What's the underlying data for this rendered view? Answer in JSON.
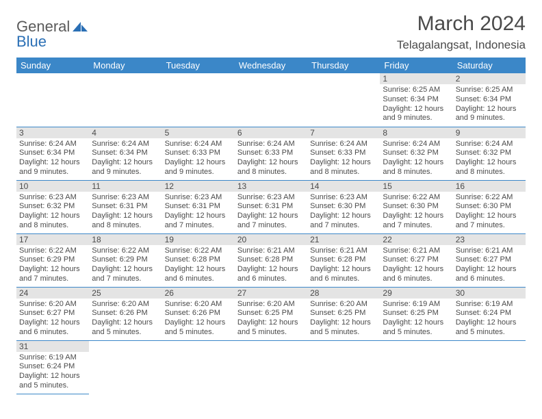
{
  "logo": {
    "part1": "General",
    "part2": "Blue"
  },
  "title": "March 2024",
  "location": "Telagalangsat, Indonesia",
  "colors": {
    "header_bg": "#3b87c8",
    "header_fg": "#ffffff",
    "daynum_bg": "#e4e4e4",
    "border": "#3b87c8",
    "text": "#4a4a4a",
    "logo_gray": "#5a5a5a",
    "logo_blue": "#2a6fb5"
  },
  "weekdays": [
    "Sunday",
    "Monday",
    "Tuesday",
    "Wednesday",
    "Thursday",
    "Friday",
    "Saturday"
  ],
  "grid": [
    [
      null,
      null,
      null,
      null,
      null,
      {
        "n": "1",
        "sr": "6:25 AM",
        "ss": "6:34 PM",
        "dl": "12 hours and 9 minutes."
      },
      {
        "n": "2",
        "sr": "6:25 AM",
        "ss": "6:34 PM",
        "dl": "12 hours and 9 minutes."
      }
    ],
    [
      {
        "n": "3",
        "sr": "6:24 AM",
        "ss": "6:34 PM",
        "dl": "12 hours and 9 minutes."
      },
      {
        "n": "4",
        "sr": "6:24 AM",
        "ss": "6:34 PM",
        "dl": "12 hours and 9 minutes."
      },
      {
        "n": "5",
        "sr": "6:24 AM",
        "ss": "6:33 PM",
        "dl": "12 hours and 9 minutes."
      },
      {
        "n": "6",
        "sr": "6:24 AM",
        "ss": "6:33 PM",
        "dl": "12 hours and 8 minutes."
      },
      {
        "n": "7",
        "sr": "6:24 AM",
        "ss": "6:33 PM",
        "dl": "12 hours and 8 minutes."
      },
      {
        "n": "8",
        "sr": "6:24 AM",
        "ss": "6:32 PM",
        "dl": "12 hours and 8 minutes."
      },
      {
        "n": "9",
        "sr": "6:24 AM",
        "ss": "6:32 PM",
        "dl": "12 hours and 8 minutes."
      }
    ],
    [
      {
        "n": "10",
        "sr": "6:23 AM",
        "ss": "6:32 PM",
        "dl": "12 hours and 8 minutes."
      },
      {
        "n": "11",
        "sr": "6:23 AM",
        "ss": "6:31 PM",
        "dl": "12 hours and 8 minutes."
      },
      {
        "n": "12",
        "sr": "6:23 AM",
        "ss": "6:31 PM",
        "dl": "12 hours and 7 minutes."
      },
      {
        "n": "13",
        "sr": "6:23 AM",
        "ss": "6:31 PM",
        "dl": "12 hours and 7 minutes."
      },
      {
        "n": "14",
        "sr": "6:23 AM",
        "ss": "6:30 PM",
        "dl": "12 hours and 7 minutes."
      },
      {
        "n": "15",
        "sr": "6:22 AM",
        "ss": "6:30 PM",
        "dl": "12 hours and 7 minutes."
      },
      {
        "n": "16",
        "sr": "6:22 AM",
        "ss": "6:30 PM",
        "dl": "12 hours and 7 minutes."
      }
    ],
    [
      {
        "n": "17",
        "sr": "6:22 AM",
        "ss": "6:29 PM",
        "dl": "12 hours and 7 minutes."
      },
      {
        "n": "18",
        "sr": "6:22 AM",
        "ss": "6:29 PM",
        "dl": "12 hours and 7 minutes."
      },
      {
        "n": "19",
        "sr": "6:22 AM",
        "ss": "6:28 PM",
        "dl": "12 hours and 6 minutes."
      },
      {
        "n": "20",
        "sr": "6:21 AM",
        "ss": "6:28 PM",
        "dl": "12 hours and 6 minutes."
      },
      {
        "n": "21",
        "sr": "6:21 AM",
        "ss": "6:28 PM",
        "dl": "12 hours and 6 minutes."
      },
      {
        "n": "22",
        "sr": "6:21 AM",
        "ss": "6:27 PM",
        "dl": "12 hours and 6 minutes."
      },
      {
        "n": "23",
        "sr": "6:21 AM",
        "ss": "6:27 PM",
        "dl": "12 hours and 6 minutes."
      }
    ],
    [
      {
        "n": "24",
        "sr": "6:20 AM",
        "ss": "6:27 PM",
        "dl": "12 hours and 6 minutes."
      },
      {
        "n": "25",
        "sr": "6:20 AM",
        "ss": "6:26 PM",
        "dl": "12 hours and 5 minutes."
      },
      {
        "n": "26",
        "sr": "6:20 AM",
        "ss": "6:26 PM",
        "dl": "12 hours and 5 minutes."
      },
      {
        "n": "27",
        "sr": "6:20 AM",
        "ss": "6:25 PM",
        "dl": "12 hours and 5 minutes."
      },
      {
        "n": "28",
        "sr": "6:20 AM",
        "ss": "6:25 PM",
        "dl": "12 hours and 5 minutes."
      },
      {
        "n": "29",
        "sr": "6:19 AM",
        "ss": "6:25 PM",
        "dl": "12 hours and 5 minutes."
      },
      {
        "n": "30",
        "sr": "6:19 AM",
        "ss": "6:24 PM",
        "dl": "12 hours and 5 minutes."
      }
    ],
    [
      {
        "n": "31",
        "sr": "6:19 AM",
        "ss": "6:24 PM",
        "dl": "12 hours and 5 minutes."
      },
      null,
      null,
      null,
      null,
      null,
      null
    ]
  ],
  "labels": {
    "sunrise": "Sunrise:",
    "sunset": "Sunset:",
    "daylight": "Daylight:"
  }
}
